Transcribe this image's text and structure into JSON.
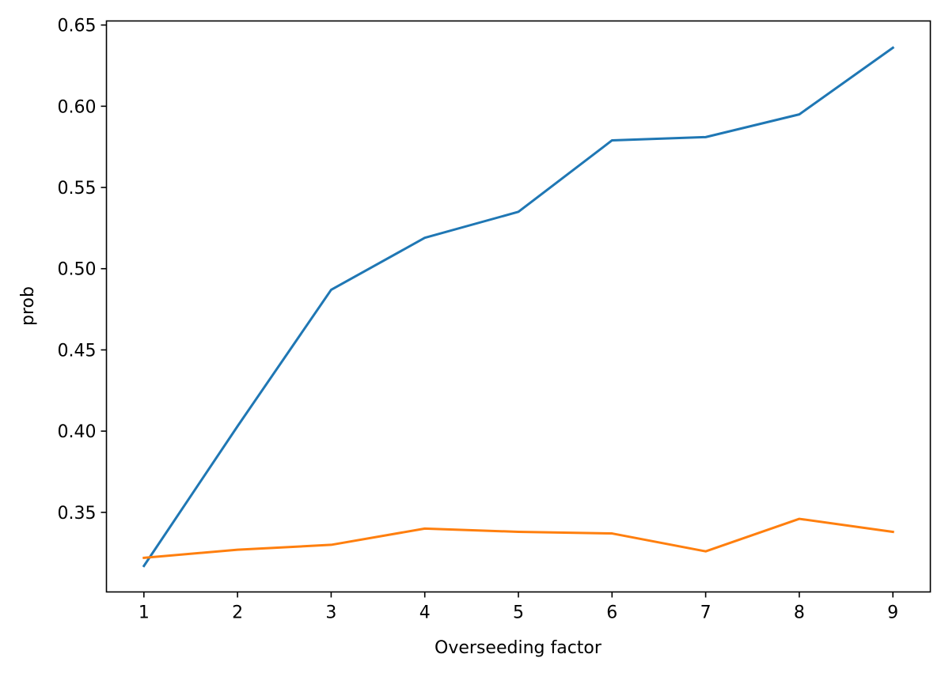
{
  "chart_data": {
    "type": "line",
    "title": "",
    "xlabel": "Overseeding factor",
    "ylabel": "prob",
    "x": [
      1,
      2,
      3,
      4,
      5,
      6,
      7,
      8,
      9
    ],
    "series": [
      {
        "color": "#1f77b4",
        "values": [
          0.317,
          0.403,
          0.487,
          0.519,
          0.535,
          0.579,
          0.581,
          0.595,
          0.636
        ]
      },
      {
        "color": "#ff7f0e",
        "values": [
          0.322,
          0.327,
          0.33,
          0.34,
          0.338,
          0.337,
          0.326,
          0.346,
          0.338
        ]
      }
    ],
    "xticks": [
      "1",
      "2",
      "3",
      "4",
      "5",
      "6",
      "7",
      "8",
      "9"
    ],
    "yticks": [
      "0.35",
      "0.40",
      "0.45",
      "0.50",
      "0.55",
      "0.60",
      "0.65"
    ],
    "xlim": [
      0.6,
      9.4
    ],
    "ylim": [
      0.301,
      0.6525
    ],
    "grid": false
  }
}
